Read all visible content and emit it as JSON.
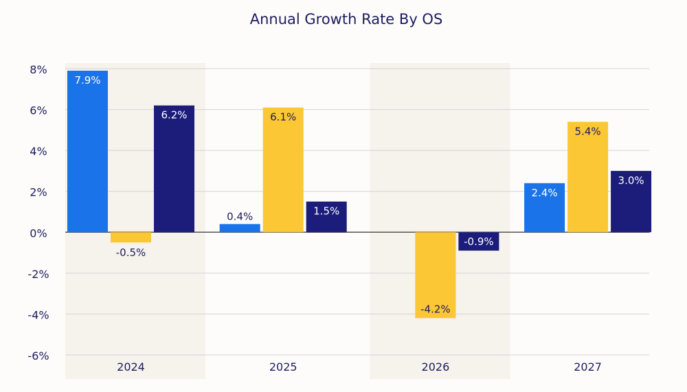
{
  "chart_data": {
    "type": "bar",
    "title": "Annual Growth Rate By OS",
    "xlabel": "",
    "ylabel": "",
    "categories": [
      "2024",
      "2025",
      "2026",
      "2027"
    ],
    "ylim": [
      -6,
      8
    ],
    "yticks": [
      8,
      6,
      4,
      2,
      0,
      -2,
      -4,
      -6
    ],
    "ytick_labels": [
      "8%",
      "6%",
      "4%",
      "2%",
      "0%",
      "-2%",
      "-4%",
      "-6%"
    ],
    "grid": true,
    "legend": "none",
    "series": [
      {
        "color": "#1a73e8",
        "values": [
          7.9,
          0.4,
          null,
          2.4
        ],
        "labels": [
          "7.9%",
          "0.4%",
          "",
          "2.4%"
        ]
      },
      {
        "color": "#fbc734",
        "values": [
          -0.5,
          6.1,
          -4.2,
          5.4
        ],
        "labels": [
          "-0.5%",
          "6.1%",
          "-4.2%",
          "5.4%"
        ]
      },
      {
        "color": "#1c1c7a",
        "values": [
          6.2,
          1.5,
          -0.9,
          3.0
        ],
        "labels": [
          "6.2%",
          "1.5%",
          "-0.9%",
          "3.0%"
        ]
      }
    ],
    "shaded_categories": [
      "2024",
      "2026"
    ],
    "colors": {
      "title": "#1c1c5e",
      "text": "#1c1c5e",
      "grid": "#d4d2d8",
      "shade": "#f6f2ec"
    }
  }
}
